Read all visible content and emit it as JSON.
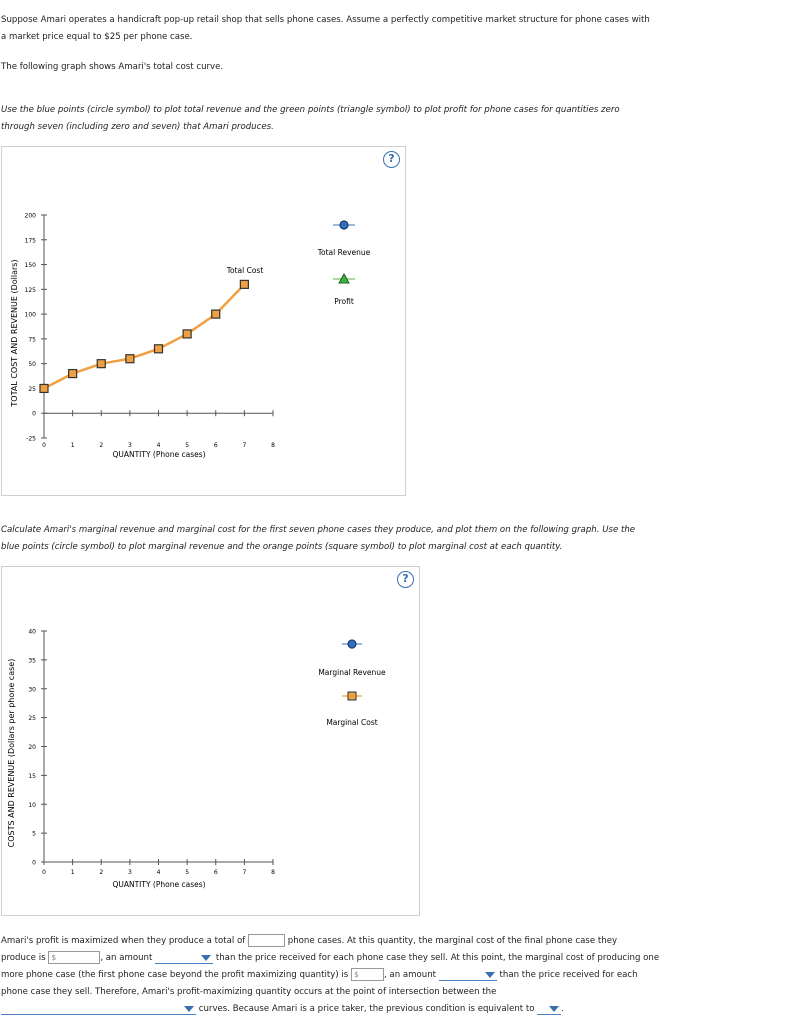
{
  "intro": {
    "p1": "Suppose Amari operates a handicraft pop-up retail shop that sells phone cases. Assume a perfectly competitive market structure for phone cases with",
    "p1b": "a market price equal to $25 per phone case.",
    "p2": "The following graph shows Amari's total cost curve.",
    "p3": "Use the blue points (circle symbol) to plot total revenue and the green points (triangle symbol) to plot profit for phone cases for quantities zero",
    "p3b": "through seven (including zero and seven) that Amari produces."
  },
  "graph1": {
    "help": "?",
    "ylabel": "TOTAL COST AND REVENUE (Dollars)",
    "xlabel": "QUANTITY (Phone cases)",
    "yticks": [
      "200",
      "175",
      "150",
      "125",
      "100",
      "75",
      "50",
      "25",
      "0",
      "-25"
    ],
    "xticks": [
      "0",
      "1",
      "2",
      "3",
      "4",
      "5",
      "6",
      "7",
      "8"
    ],
    "curve_label": "Total Cost",
    "legend": {
      "revenue": "Total Revenue",
      "profit": "Profit"
    }
  },
  "middle": {
    "p4": "Calculate Amari's marginal revenue and marginal cost for the first seven phone cases they produce, and plot them on the following graph. Use the",
    "p4b": "blue points (circle symbol) to plot marginal revenue and the orange points (square symbol) to plot marginal cost at each quantity."
  },
  "graph2": {
    "help": "?",
    "ylabel": "COSTS AND REVENUE (Dollars per phone case)",
    "xlabel": "QUANTITY (Phone cases)",
    "yticks": [
      "40",
      "35",
      "30",
      "25",
      "20",
      "15",
      "10",
      "5",
      "0"
    ],
    "xticks": [
      "0",
      "1",
      "2",
      "3",
      "4",
      "5",
      "6",
      "7",
      "8"
    ],
    "legend": {
      "mr": "Marginal Revenue",
      "mc": "Marginal Cost"
    }
  },
  "question": {
    "s1": "Amari's profit is maximized when they produce a total of",
    "s2": "phone cases. At this quantity, the marginal cost of the final phone case they",
    "s3": "produce is",
    "s4": ", an amount",
    "s5": "than the price received for each phone case they sell. At this point, the marginal cost of producing one",
    "s6": "more phone case (the first phone case beyond the profit maximizing quantity) is",
    "s7": ", an amount",
    "s8": "than the price received for each",
    "s9": "phone case they sell. Therefore, Amari's profit-maximizing quantity occurs at the point of intersection between the",
    "s10": "curves. Because Amari is a price taker, the previous condition is equivalent to",
    "dollar": "$"
  },
  "chart_data": [
    {
      "type": "line",
      "x": [
        0,
        1,
        2,
        3,
        4,
        5,
        6,
        7
      ],
      "series": [
        {
          "name": "Total Cost",
          "values": [
            25,
            40,
            50,
            55,
            65,
            80,
            100,
            130
          ],
          "color": "#f0a040"
        }
      ],
      "xlabel": "QUANTITY (Phone cases)",
      "ylabel": "TOTAL COST AND REVENUE (Dollars)",
      "xlim": [
        0,
        8
      ],
      "ylim": [
        -25,
        200
      ]
    },
    {
      "type": "scatter",
      "x": [],
      "series": [],
      "xlabel": "QUANTITY (Phone cases)",
      "ylabel": "COSTS AND REVENUE (Dollars per phone case)",
      "xlim": [
        0,
        8
      ],
      "ylim": [
        0,
        40
      ]
    }
  ]
}
